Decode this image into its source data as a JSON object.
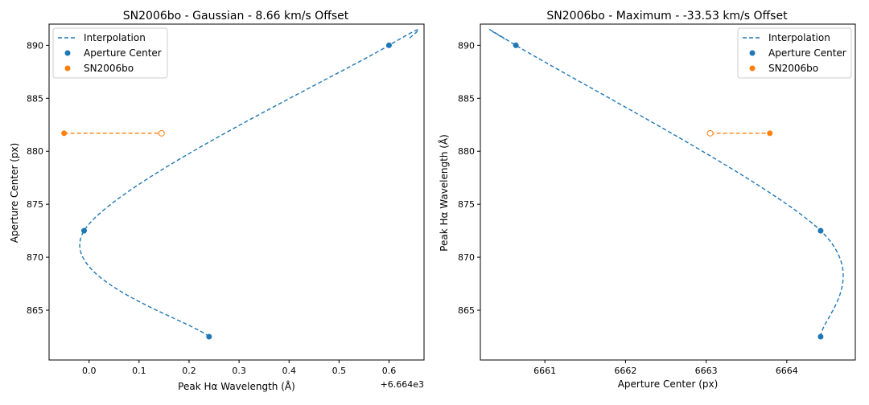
{
  "colors": {
    "series_blue": "#1f77b4",
    "series_orange": "#ff7f0e"
  },
  "chart_data": [
    {
      "type": "scatter",
      "title": "SN2006bo - Gaussian - 8.66 km/s Offset",
      "xlabel": "Peak Hα Wavelength (Å)",
      "ylabel": "Aperture Center (px)",
      "x_offset_label": "+6.664e3",
      "xlim": [
        -0.08,
        0.67
      ],
      "ylim": [
        860.3,
        892.0
      ],
      "xticks": [
        0.0,
        0.1,
        0.2,
        0.3,
        0.4,
        0.5,
        0.6
      ],
      "xtick_labels": [
        "0.0",
        "0.1",
        "0.2",
        "0.3",
        "0.4",
        "0.5",
        "0.6"
      ],
      "yticks": [
        865,
        870,
        875,
        880,
        885,
        890
      ],
      "ytick_labels": [
        "865",
        "870",
        "875",
        "880",
        "885",
        "890"
      ],
      "legend_position": "top-left",
      "legend": [
        "Interpolation",
        "Aperture Center",
        "SN2006bo"
      ],
      "interpolation": {
        "name": "Interpolation",
        "style": "dashed",
        "points": [
          [
            0.24,
            862.5
          ],
          [
            -0.01,
            872.5
          ],
          [
            0.6,
            890.0
          ],
          [
            0.64,
            890.6
          ]
        ]
      },
      "aperture_centers": {
        "name": "Aperture Center",
        "x": [
          0.24,
          -0.01,
          0.6
        ],
        "y": [
          862.5,
          872.5,
          890.0
        ]
      },
      "sn": {
        "name": "SN2006bo",
        "x": [
          -0.05
        ],
        "y": [
          881.7
        ]
      },
      "connector": {
        "x": [
          -0.05,
          0.145
        ],
        "y": [
          881.7,
          881.7
        ]
      }
    },
    {
      "type": "scatter",
      "title": "SN2006bo - Maximum - -33.53 km/s Offset",
      "xlabel": "Aperture Center (px)",
      "ylabel": "Peak Hα Wavelength (Å)",
      "xlim": [
        6660.2,
        6664.85
      ],
      "ylim": [
        860.3,
        892.0
      ],
      "xticks": [
        6661,
        6662,
        6663,
        6664
      ],
      "xtick_labels": [
        "6661",
        "6662",
        "6663",
        "6664"
      ],
      "yticks": [
        865,
        870,
        875,
        880,
        885,
        890
      ],
      "ytick_labels": [
        "865",
        "870",
        "875",
        "880",
        "885",
        "890"
      ],
      "legend_position": "top-right",
      "legend": [
        "Interpolation",
        "Aperture Center",
        "SN2006bo"
      ],
      "interpolation": {
        "name": "Interpolation",
        "style": "dashed",
        "points": [
          [
            6664.42,
            862.5
          ],
          [
            6664.42,
            872.5
          ],
          [
            6660.64,
            890.0
          ],
          [
            6660.5,
            890.6
          ]
        ]
      },
      "aperture_centers": {
        "name": "Aperture Center",
        "x": [
          6664.42,
          6664.42,
          6660.64
        ],
        "y": [
          862.5,
          872.5,
          890.0
        ]
      },
      "sn": {
        "name": "SN2006bo",
        "x": [
          6663.79
        ],
        "y": [
          881.7
        ]
      },
      "connector": {
        "x": [
          6663.05,
          6663.79
        ],
        "y": [
          881.7,
          881.7
        ]
      }
    }
  ]
}
